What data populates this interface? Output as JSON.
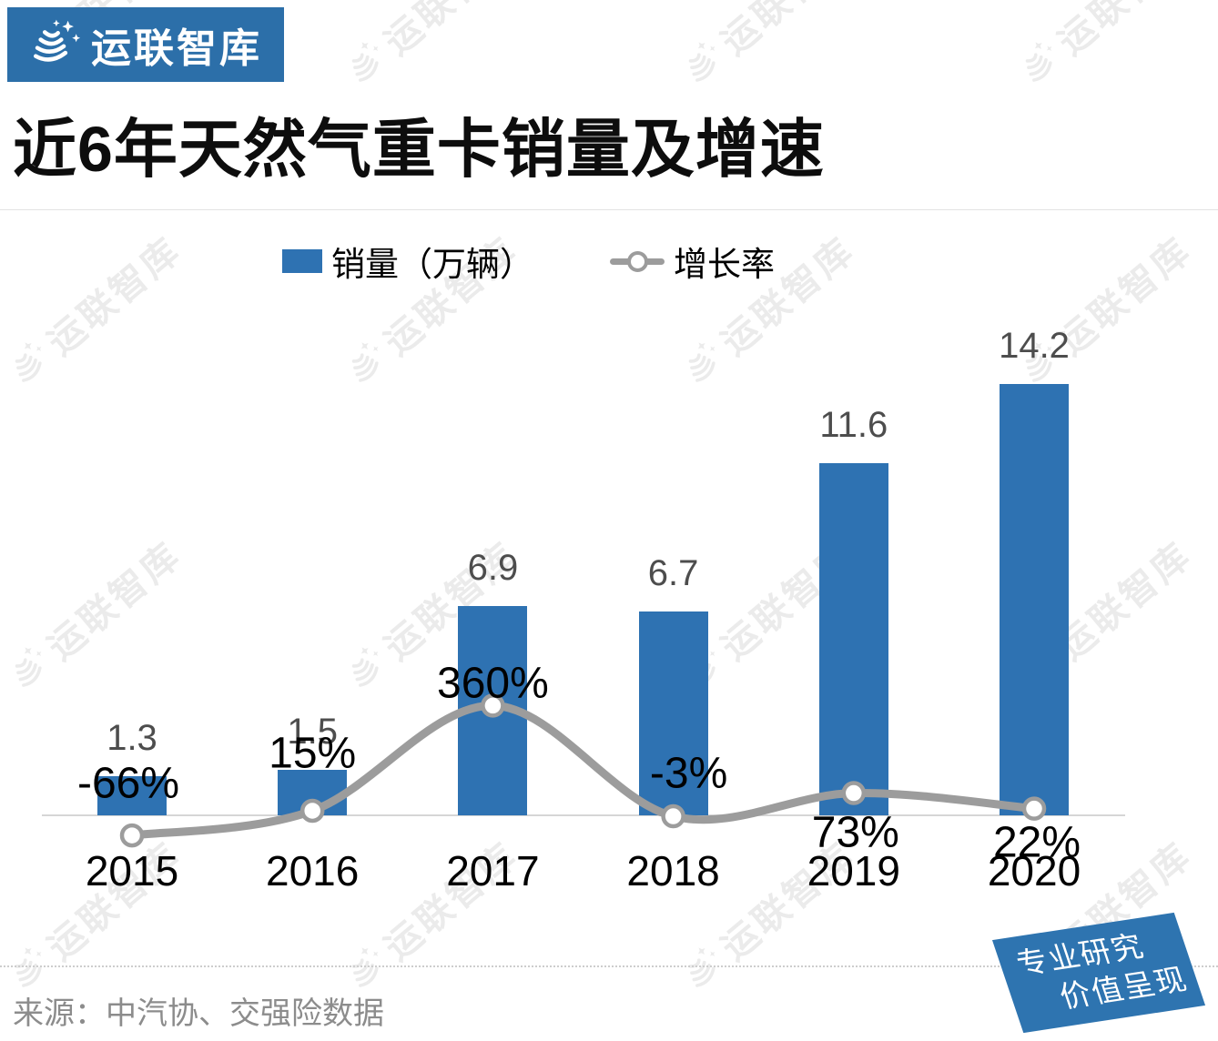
{
  "logo": {
    "text": "运联智库",
    "bg_color": "#2C6FA9"
  },
  "title": "近6年天然气重卡销量及增速",
  "legend": {
    "sales_label": "销量（万辆）",
    "growth_label": "增长率"
  },
  "watermark": {
    "text": "运联智库"
  },
  "source": "来源：中汽协、交强险数据",
  "badge": {
    "line1": "专业研究",
    "line2": "价值呈现",
    "bg_color": "#2E74B0"
  },
  "colors": {
    "bar": "#2E72B2",
    "growth_line": "#9C9C9C",
    "marker_fill": "#FFFFFF",
    "axis": "#D6D6D6",
    "value_label": "#4D4D4D",
    "growth_label": "#000000",
    "year_label": "#000000",
    "source_text": "#8C8C8C",
    "watermark": "#EBEBEB"
  },
  "chart_data": {
    "type": "bar",
    "categories": [
      "2015",
      "2016",
      "2017",
      "2018",
      "2019",
      "2020"
    ],
    "series": [
      {
        "name": "销量（万辆）",
        "type": "bar",
        "values": [
          1.3,
          1.5,
          6.9,
          6.7,
          11.6,
          14.2
        ],
        "labels": [
          "1.3",
          "1.5",
          "6.9",
          "6.7",
          "11.6",
          "14.2"
        ],
        "color": "#2E72B2"
      },
      {
        "name": "增长率",
        "type": "line",
        "unit": "%",
        "values": [
          -66,
          15,
          360,
          -3,
          73,
          22
        ],
        "labels": [
          "-66%",
          "15%",
          "360%",
          "-3%",
          "73%",
          "22%"
        ],
        "color": "#9C9C9C"
      }
    ],
    "title": "近6年天然气重卡销量及增速",
    "xlabel": "",
    "ylabel": "",
    "legend_position": "top",
    "grid": false,
    "baseline": 0,
    "bar_axis_range": [
      0,
      15
    ],
    "line_axis_range_pct": [
      -100,
      400
    ]
  }
}
